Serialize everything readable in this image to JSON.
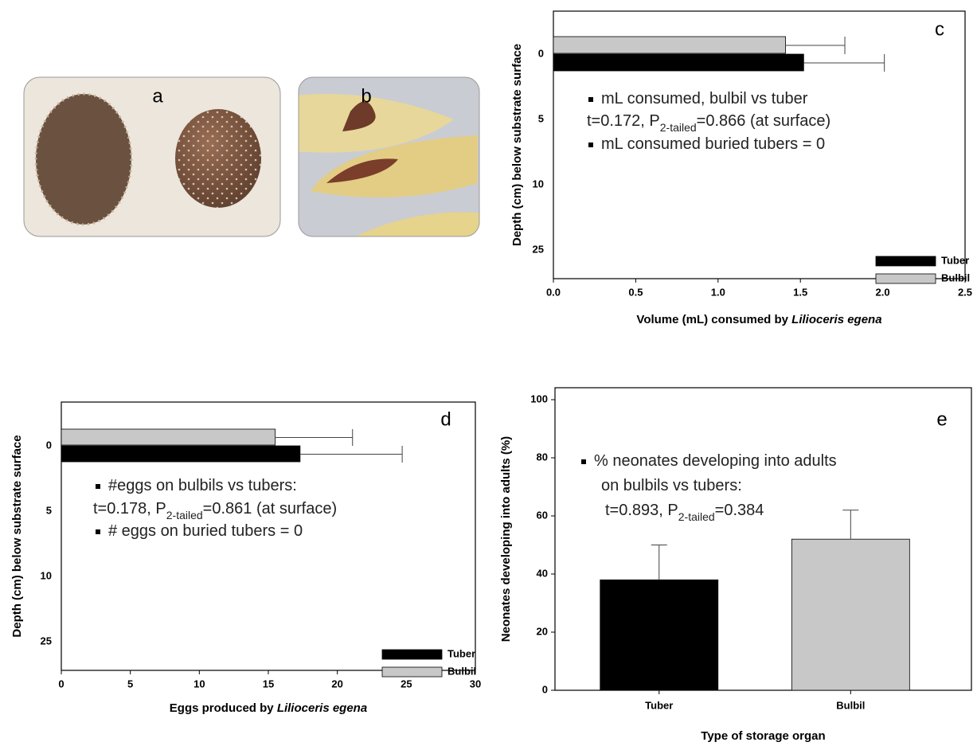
{
  "photos": [
    {
      "label": "a"
    },
    {
      "label": "b"
    }
  ],
  "chart_data": [
    {
      "type": "hbar",
      "panel_label": "c",
      "ylabel": "Depth (cm) below substrate surface",
      "xlabel": [
        {
          "text": "Volume (mL) consumed by "
        },
        {
          "text": "Lilioceris egena",
          "italic": true
        }
      ],
      "categories": [
        "0",
        "5",
        "10",
        "25"
      ],
      "series": [
        {
          "name": "Tuber",
          "color": "#000000",
          "values": [
            1.52,
            null,
            null,
            null
          ],
          "errors": [
            0.49,
            null,
            null,
            null
          ]
        },
        {
          "name": "Bulbil",
          "color": "#c8c8c8",
          "values": [
            1.41,
            null,
            null,
            null
          ],
          "errors": [
            0.36,
            null,
            null,
            null
          ]
        }
      ],
      "xlim": [
        0,
        2.5
      ],
      "xticks": [
        {
          "value": 0,
          "label": "0.0"
        },
        0.5,
        {
          "value": 1,
          "label": "1.0"
        },
        1.5,
        {
          "value": 2,
          "label": "2.0"
        },
        2.5
      ],
      "legend": "lower right",
      "annotations": [
        {
          "bullet": true,
          "segments": [
            {
              "text": "mL consumed, bulbil vs tuber"
            }
          ]
        },
        {
          "bullet": false,
          "segments": [
            {
              "text": "t=0.172, P"
            },
            {
              "text": "2-tailed",
              "subscript": true
            },
            {
              "text": "=0.866 (at surface)"
            }
          ]
        },
        {
          "bullet": true,
          "segments": [
            {
              "text": "mL consumed buried tubers = 0"
            }
          ]
        }
      ]
    },
    {
      "type": "hbar",
      "panel_label": "d",
      "ylabel": "Depth (cm) below substrate surface",
      "xlabel": [
        {
          "text": "Eggs produced by "
        },
        {
          "text": "Lilioceris egena",
          "italic": true
        }
      ],
      "categories": [
        "0",
        "5",
        "10",
        "25"
      ],
      "series": [
        {
          "name": "Tuber",
          "color": "#000000",
          "values": [
            17.3,
            null,
            null,
            null
          ],
          "errors": [
            7.4,
            null,
            null,
            null
          ]
        },
        {
          "name": "Bulbil",
          "color": "#c8c8c8",
          "values": [
            15.5,
            null,
            null,
            null
          ],
          "errors": [
            5.6,
            null,
            null,
            null
          ]
        }
      ],
      "xlim": [
        0,
        30
      ],
      "xticks": [
        0,
        5,
        10,
        15,
        20,
        25,
        30
      ],
      "legend": "lower right",
      "annotations": [
        {
          "bullet": true,
          "segments": [
            {
              "text": "#eggs on bulbils vs tubers:"
            }
          ]
        },
        {
          "bullet": false,
          "segments": [
            {
              "text": "t=0.178, P"
            },
            {
              "text": "2-tailed",
              "subscript": true
            },
            {
              "text": "=0.861 (at surface)"
            }
          ]
        },
        {
          "bullet": true,
          "segments": [
            {
              "text": "# eggs on buried tubers = 0"
            }
          ]
        }
      ]
    },
    {
      "type": "bar",
      "panel_label": "e",
      "ylabel": "Neonates developing into adults (%)",
      "xlabel": [
        {
          "text": "Type of storage organ"
        }
      ],
      "categories": [
        "Tuber",
        "Bulbil"
      ],
      "values": [
        38,
        52
      ],
      "errors": [
        12,
        10
      ],
      "colors": [
        "#000000",
        "#c8c8c8"
      ],
      "ylim": [
        0,
        100
      ],
      "yticks": [
        0,
        20,
        40,
        60,
        80,
        100
      ],
      "annotations": [
        {
          "bullet": true,
          "segments": [
            {
              "text": "% neonates developing into adults"
            }
          ]
        },
        {
          "bullet": false,
          "segments": [
            {
              "text": "on bulbils vs tubers:"
            }
          ]
        },
        {
          "bullet": false,
          "segments": [
            {
              "text": "t=0.893, P"
            },
            {
              "text": "2-tailed",
              "subscript": true
            },
            {
              "text": "=0.384"
            }
          ]
        }
      ]
    }
  ]
}
